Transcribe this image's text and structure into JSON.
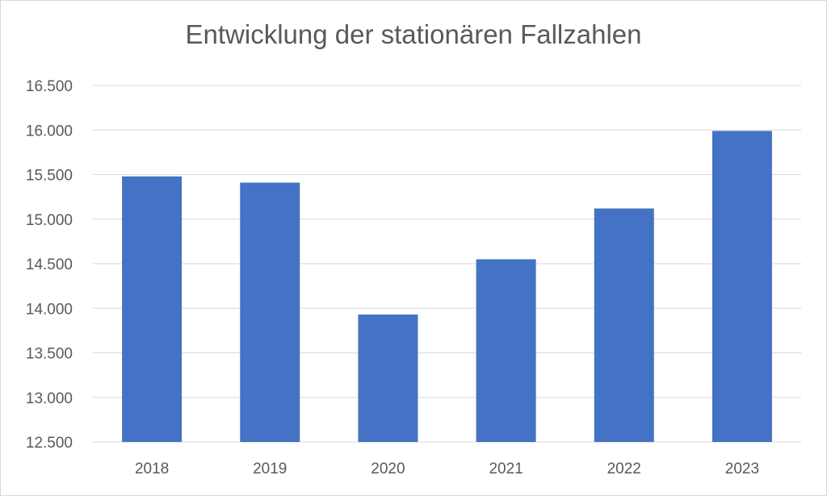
{
  "chart_data": {
    "type": "bar",
    "title": "Entwicklung der stationären Fallzahlen",
    "xlabel": "",
    "ylabel": "",
    "categories": [
      "2018",
      "2019",
      "2020",
      "2021",
      "2022",
      "2023"
    ],
    "values": [
      15480,
      15410,
      13930,
      14550,
      15120,
      15990
    ],
    "ylim": [
      12500,
      16500
    ],
    "yticks": [
      12500,
      13000,
      13500,
      14000,
      14500,
      15000,
      15500,
      16000,
      16500
    ],
    "ytick_labels": [
      "12.500",
      "13.000",
      "13.500",
      "14.000",
      "14.500",
      "15.000",
      "15.500",
      "16.000",
      "16.500"
    ],
    "grid": true,
    "legend": "none",
    "bar_color": "#4472C4",
    "grid_color": "#d9d9d9"
  }
}
